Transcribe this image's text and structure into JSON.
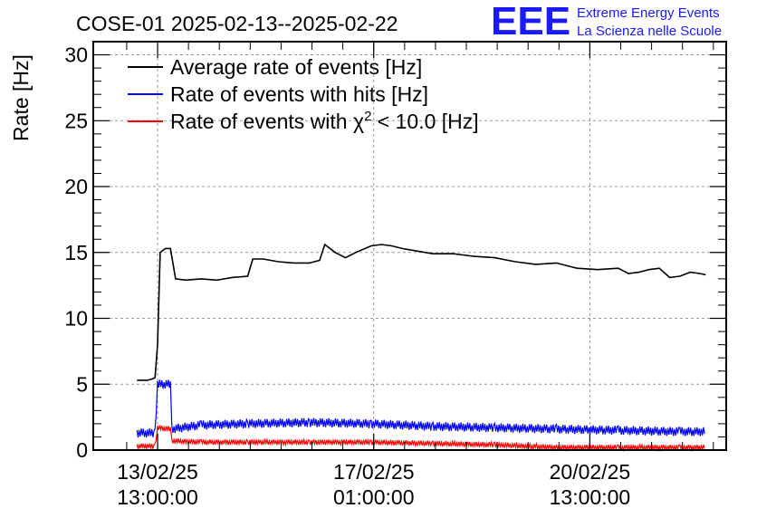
{
  "title": "COSE-01 2025-02-13--2025-02-22",
  "logo": {
    "mark": "EEE",
    "line1": "Extreme Energy Events",
    "line2": "La Scienza nelle Scuole",
    "color": "#1a1aff"
  },
  "chart_data": {
    "type": "line",
    "ylabel": "Rate [Hz]",
    "ylim": [
      0,
      31
    ],
    "yticks": [
      0,
      5,
      10,
      15,
      20,
      25,
      30
    ],
    "xlim": [
      "2025-02-12 12:00",
      "2025-02-22 18:00"
    ],
    "xticks": [
      {
        "line1": "13/02/25",
        "line2": "13:00:00",
        "t": "2025-02-13 13:00"
      },
      {
        "line1": "17/02/25",
        "line2": "01:00:00",
        "t": "2025-02-17 01:00"
      },
      {
        "line1": "20/02/25",
        "line2": "13:00:00",
        "t": "2025-02-20 13:00"
      }
    ],
    "grid": true,
    "legend_position": "top-left",
    "legend": [
      {
        "label": "Average rate of events [Hz]",
        "color": "#000000"
      },
      {
        "label": "Rate of events with hits [Hz]",
        "color": "#0000ff"
      },
      {
        "label_parts": [
          "Rate of events with ",
          "χ",
          "2",
          " < 10.0 [Hz]"
        ],
        "color": "#ff0000"
      }
    ],
    "series": [
      {
        "name": "Average rate of events [Hz]",
        "color": "#000000",
        "points": [
          [
            "2025-02-13 05:00",
            5.3
          ],
          [
            "2025-02-13 09:00",
            5.3
          ],
          [
            "2025-02-13 11:00",
            5.4
          ],
          [
            "2025-02-13 12:00",
            5.5
          ],
          [
            "2025-02-13 13:00",
            8.0
          ],
          [
            "2025-02-13 14:00",
            15.0
          ],
          [
            "2025-02-13 16:00",
            15.3
          ],
          [
            "2025-02-13 18:00",
            15.3
          ],
          [
            "2025-02-13 20:00",
            13.0
          ],
          [
            "2025-02-14 00:00",
            12.9
          ],
          [
            "2025-02-14 06:00",
            13.0
          ],
          [
            "2025-02-14 12:00",
            12.9
          ],
          [
            "2025-02-14 18:00",
            13.1
          ],
          [
            "2025-02-15 00:00",
            13.2
          ],
          [
            "2025-02-15 02:00",
            14.5
          ],
          [
            "2025-02-15 06:00",
            14.5
          ],
          [
            "2025-02-15 12:00",
            14.3
          ],
          [
            "2025-02-15 18:00",
            14.2
          ],
          [
            "2025-02-16 00:00",
            14.2
          ],
          [
            "2025-02-16 04:00",
            14.4
          ],
          [
            "2025-02-16 06:00",
            15.6
          ],
          [
            "2025-02-16 10:00",
            15.0
          ],
          [
            "2025-02-16 14:00",
            14.6
          ],
          [
            "2025-02-16 18:00",
            15.0
          ],
          [
            "2025-02-17 00:00",
            15.5
          ],
          [
            "2025-02-17 04:00",
            15.6
          ],
          [
            "2025-02-17 08:00",
            15.5
          ],
          [
            "2025-02-17 12:00",
            15.3
          ],
          [
            "2025-02-17 18:00",
            15.1
          ],
          [
            "2025-02-18 00:00",
            14.9
          ],
          [
            "2025-02-18 08:00",
            14.9
          ],
          [
            "2025-02-18 16:00",
            14.7
          ],
          [
            "2025-02-19 00:00",
            14.6
          ],
          [
            "2025-02-19 08:00",
            14.3
          ],
          [
            "2025-02-19 16:00",
            14.1
          ],
          [
            "2025-02-20 00:00",
            14.2
          ],
          [
            "2025-02-20 08:00",
            13.8
          ],
          [
            "2025-02-20 16:00",
            13.7
          ],
          [
            "2025-02-21 00:00",
            13.8
          ],
          [
            "2025-02-21 04:00",
            13.4
          ],
          [
            "2025-02-21 08:00",
            13.5
          ],
          [
            "2025-02-21 12:00",
            13.7
          ],
          [
            "2025-02-21 16:00",
            13.8
          ],
          [
            "2025-02-21 20:00",
            13.1
          ],
          [
            "2025-02-22 00:00",
            13.2
          ],
          [
            "2025-02-22 04:00",
            13.5
          ],
          [
            "2025-02-22 08:00",
            13.4
          ],
          [
            "2025-02-22 10:00",
            13.3
          ]
        ]
      },
      {
        "name": "Rate of events with hits [Hz]",
        "color": "#0000ff",
        "points": [
          [
            "2025-02-13 05:00",
            1.3
          ],
          [
            "2025-02-13 12:00",
            1.3
          ],
          [
            "2025-02-13 13:00",
            5.0
          ],
          [
            "2025-02-13 18:00",
            5.0
          ],
          [
            "2025-02-13 18:30",
            1.6
          ],
          [
            "2025-02-14 06:00",
            1.9
          ],
          [
            "2025-02-15 00:00",
            2.0
          ],
          [
            "2025-02-16 00:00",
            2.1
          ],
          [
            "2025-02-17 00:00",
            2.0
          ],
          [
            "2025-02-18 00:00",
            1.8
          ],
          [
            "2025-02-19 00:00",
            1.7
          ],
          [
            "2025-02-20 00:00",
            1.6
          ],
          [
            "2025-02-21 00:00",
            1.5
          ],
          [
            "2025-02-22 00:00",
            1.4
          ],
          [
            "2025-02-22 10:00",
            1.4
          ]
        ]
      },
      {
        "name": "Rate of events with χ2 < 10.0 [Hz]",
        "color": "#ff0000",
        "points": [
          [
            "2025-02-13 05:00",
            0.3
          ],
          [
            "2025-02-13 12:00",
            0.3
          ],
          [
            "2025-02-13 13:00",
            1.7
          ],
          [
            "2025-02-13 18:00",
            1.6
          ],
          [
            "2025-02-13 18:30",
            0.7
          ],
          [
            "2025-02-14 06:00",
            0.6
          ],
          [
            "2025-02-15 00:00",
            0.6
          ],
          [
            "2025-02-16 00:00",
            0.6
          ],
          [
            "2025-02-17 00:00",
            0.6
          ],
          [
            "2025-02-18 00:00",
            0.5
          ],
          [
            "2025-02-19 00:00",
            0.4
          ],
          [
            "2025-02-19 12:00",
            0.3
          ],
          [
            "2025-02-20 00:00",
            0.2
          ],
          [
            "2025-02-21 00:00",
            0.2
          ],
          [
            "2025-02-22 00:00",
            0.2
          ],
          [
            "2025-02-22 10:00",
            0.2
          ]
        ]
      }
    ]
  }
}
